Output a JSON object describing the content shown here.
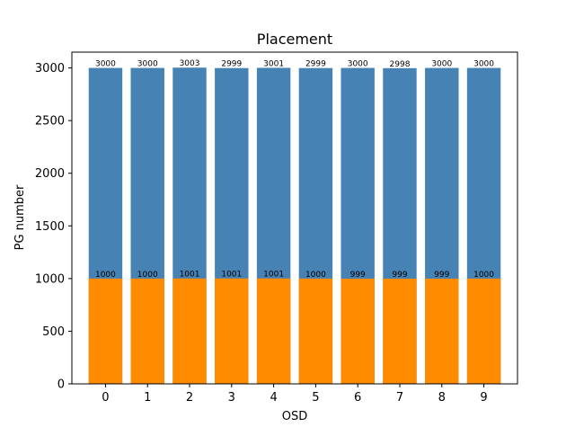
{
  "chart_data": {
    "type": "bar",
    "title": "Placement",
    "xlabel": "OSD",
    "ylabel": "PG number",
    "categories": [
      "0",
      "1",
      "2",
      "3",
      "4",
      "5",
      "6",
      "7",
      "8",
      "9"
    ],
    "ylim": [
      0,
      3150
    ],
    "yticks": [
      0,
      500,
      1000,
      1500,
      2000,
      2500,
      3000
    ],
    "grid": false,
    "legend": "none",
    "series": [
      {
        "values": [
          3000,
          3000,
          3003,
          2999,
          3001,
          2999,
          3000,
          2998,
          3000,
          3000
        ],
        "color": "#4682b4"
      },
      {
        "values": [
          1000,
          1000,
          1001,
          1001,
          1001,
          1000,
          999,
          999,
          999,
          1000
        ],
        "color": "#ff8c00"
      }
    ]
  }
}
